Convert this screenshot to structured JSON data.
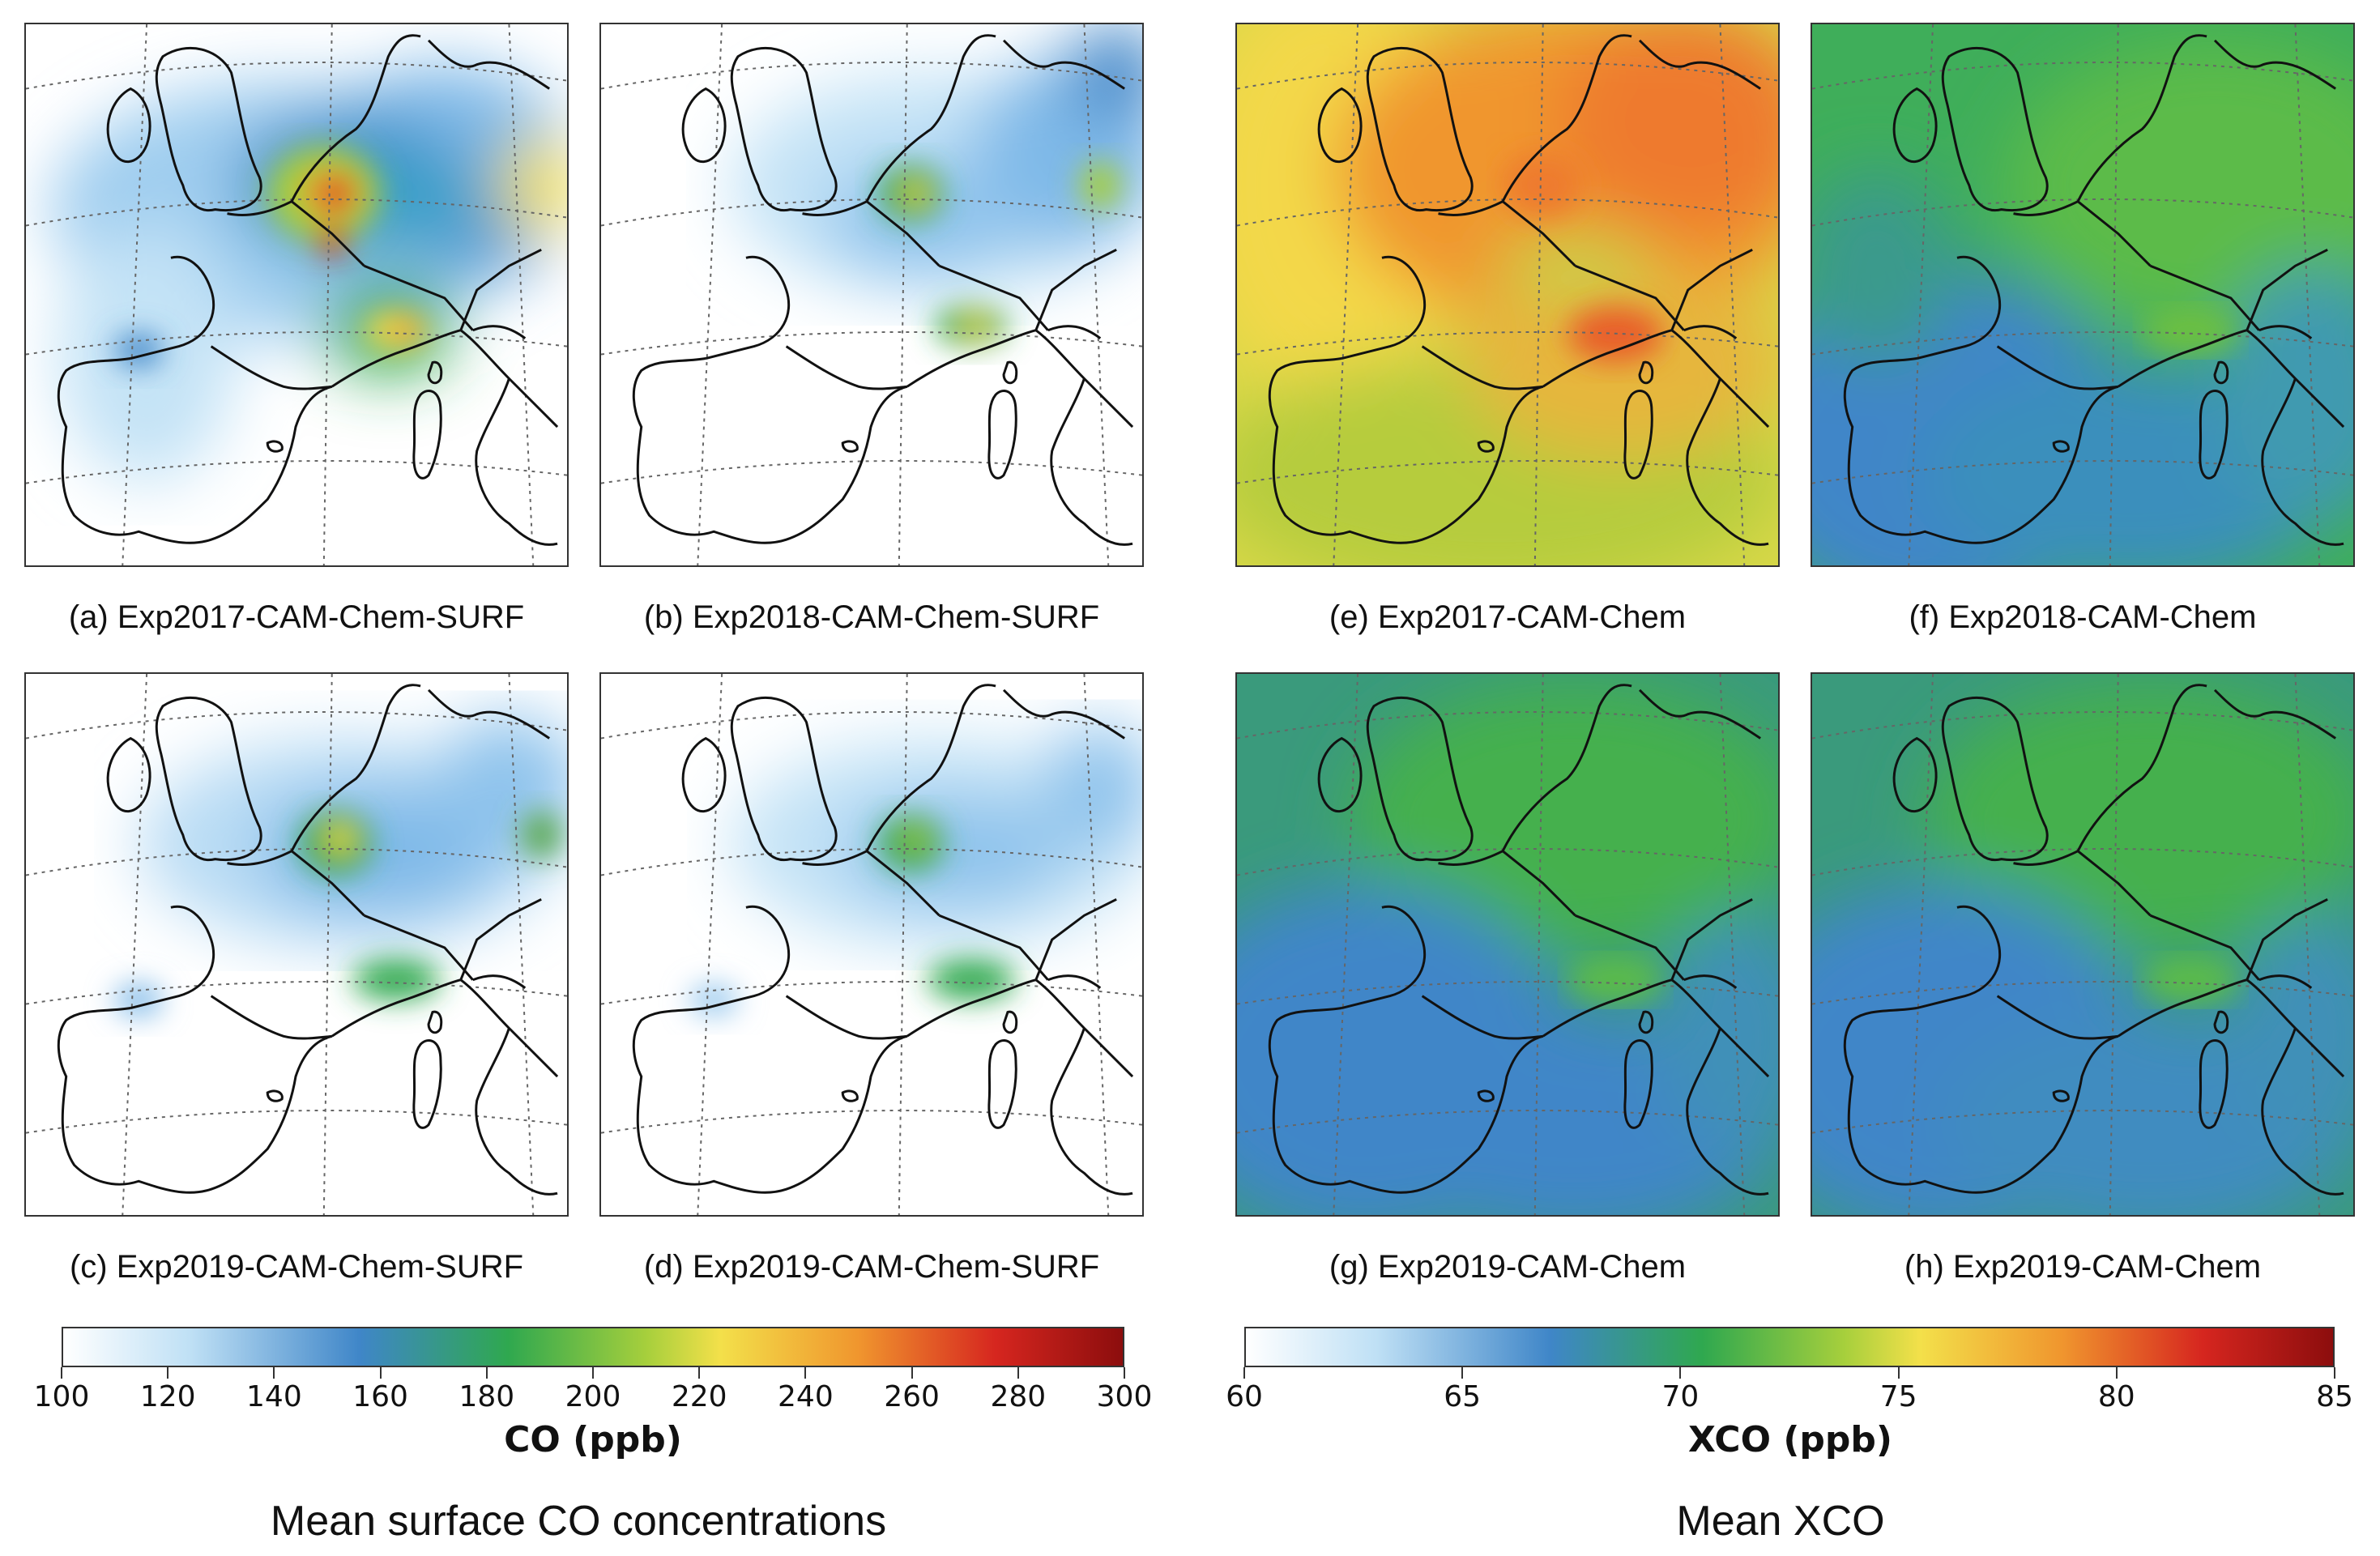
{
  "panels": [
    {
      "id": "a",
      "caption": "(a) Exp2017-CAM-Chem-SURF"
    },
    {
      "id": "b",
      "caption": "(b) Exp2018-CAM-Chem-SURF"
    },
    {
      "id": "c",
      "caption": "(c) Exp2019-CAM-Chem-SURF"
    },
    {
      "id": "d",
      "caption": "(d) Exp2019-CAM-Chem-SURF"
    },
    {
      "id": "e",
      "caption": "(e) Exp2017-CAM-Chem"
    },
    {
      "id": "f",
      "caption": "(f) Exp2018-CAM-Chem"
    },
    {
      "id": "g",
      "caption": "(g) Exp2019-CAM-Chem"
    },
    {
      "id": "h",
      "caption": "(h) Exp2019-CAM-Chem"
    }
  ],
  "colorbars": {
    "co": {
      "label": "CO (ppb)",
      "ticks": [
        "100",
        "120",
        "140",
        "160",
        "180",
        "200",
        "220",
        "240",
        "260",
        "280",
        "300"
      ]
    },
    "xco": {
      "label": "XCO (ppb)",
      "ticks": [
        "60",
        "65",
        "70",
        "75",
        "80",
        "85"
      ]
    }
  },
  "section_titles": {
    "left": "Mean surface CO concentrations",
    "right": "Mean XCO"
  },
  "colors": {
    "colormap": [
      "#ffffff",
      "#a8d4f0",
      "#3f86c8",
      "#2fa84f",
      "#a6cf3c",
      "#f3e04a",
      "#f0962e",
      "#d6261f",
      "#8c0d0d"
    ]
  }
}
